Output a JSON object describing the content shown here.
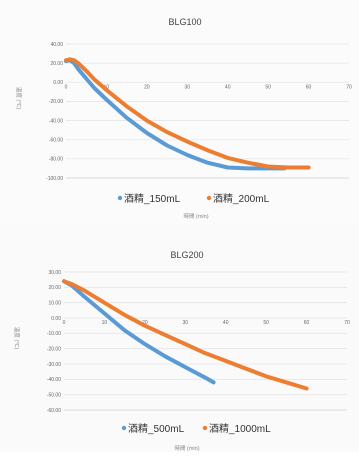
{
  "chart_data": [
    {
      "type": "line",
      "title": "BLG100",
      "xlabel": "時間 (min)",
      "ylabel": "温度 (℃)",
      "xlim": [
        0,
        70
      ],
      "ylim": [
        -100,
        40
      ],
      "x_ticks": [
        "0",
        "10",
        "20",
        "30",
        "40",
        "50",
        "60",
        "70"
      ],
      "y_ticks": [
        "40.00",
        "20.00",
        "0.00",
        "-20.00",
        "-40.00",
        "-60.00",
        "-80.00",
        "-100.00"
      ],
      "grid": true,
      "legend_position": "bottom",
      "series": [
        {
          "name": "酒精_150mL",
          "color": "#5b9bd5",
          "x": [
            0,
            1,
            2,
            3,
            5,
            7,
            10,
            15,
            20,
            25,
            30,
            35,
            40,
            45,
            50,
            54
          ],
          "y": [
            22,
            23,
            20,
            14,
            4,
            -6,
            -18,
            -37,
            -53,
            -66,
            -76,
            -84,
            -89,
            -90,
            -90,
            -90
          ]
        },
        {
          "name": "酒精_200mL",
          "color": "#ed7d31",
          "x": [
            0,
            1,
            2,
            3,
            5,
            7,
            10,
            15,
            20,
            25,
            30,
            35,
            40,
            45,
            50,
            55,
            60
          ],
          "y": [
            23,
            24,
            23,
            20,
            12,
            3,
            -8,
            -25,
            -40,
            -52,
            -62,
            -71,
            -79,
            -84,
            -88,
            -89,
            -89
          ]
        }
      ]
    },
    {
      "type": "line",
      "title": "BLG200",
      "xlabel": "時間 (min)",
      "ylabel": "温度 (℃)",
      "xlim": [
        0,
        70
      ],
      "ylim": [
        -60,
        30
      ],
      "x_ticks": [
        "0",
        "10",
        "20",
        "30",
        "40",
        "50",
        "60",
        "70"
      ],
      "y_ticks": [
        "30.00",
        "20.00",
        "10.00",
        "0.00",
        "-10.00",
        "-20.00",
        "-30.00",
        "-40.00",
        "-50.00",
        "-60.00"
      ],
      "grid": true,
      "legend_position": "bottom",
      "series": [
        {
          "name": "酒精_500mL",
          "color": "#5b9bd5",
          "x": [
            0,
            2,
            5,
            10,
            15,
            20,
            25,
            30,
            35,
            37
          ],
          "y": [
            24,
            21,
            14,
            3,
            -8,
            -17,
            -25,
            -32,
            -39,
            -42
          ]
        },
        {
          "name": "酒精_1000mL",
          "color": "#ed7d31",
          "x": [
            0,
            2,
            5,
            10,
            15,
            20,
            25,
            30,
            35,
            40,
            45,
            50,
            55,
            60
          ],
          "y": [
            24,
            22,
            18,
            10,
            2,
            -5,
            -11,
            -17,
            -23,
            -28,
            -33,
            -38,
            -42,
            -46
          ]
        }
      ]
    }
  ]
}
